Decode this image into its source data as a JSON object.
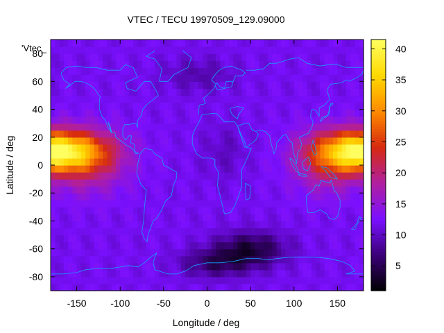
{
  "chart_data": {
    "type": "heatmap",
    "title": "VTEC / TECU 19970509_129.09000",
    "xlabel": "Longitude / deg",
    "ylabel": "Latitude / deg",
    "xlim": [
      -180,
      180
    ],
    "ylim": [
      -90,
      90
    ],
    "x_ticks": [
      -150,
      -100,
      -50,
      0,
      50,
      100,
      150
    ],
    "y_ticks": [
      60,
      40,
      20,
      0,
      -20,
      -40,
      -60,
      -80
    ],
    "top_clipped_tick": "80",
    "legend_text": "'Vtec_",
    "colorbar": {
      "min": 1,
      "max": 41.5,
      "ticks": [
        5,
        10,
        15,
        20,
        25,
        30,
        35,
        40
      ],
      "palette": [
        "#000000",
        "#3b0078",
        "#7a10ff",
        "#b01fa0",
        "#d62a10",
        "#ff8a00",
        "#ffd800",
        "#ffff60"
      ]
    },
    "grid": false,
    "field_description": "Background VTEC ~12 TECU; tropical maxima ~40 TECU centred near lon -180 and +180 at lat ~10; minima ~2-5 TECU over Antarctica (lon 0 to 80, lat -55 to -80).",
    "field_sources": [
      {
        "lon": -185,
        "lat": 10,
        "amp": 29,
        "rx": 58,
        "ry": 14
      },
      {
        "lon": 185,
        "lat": 10,
        "amp": 29,
        "rx": 52,
        "ry": 14
      },
      {
        "lon": -140,
        "lat": 3,
        "amp": 8,
        "rx": 45,
        "ry": 22
      },
      {
        "lon": 140,
        "lat": 3,
        "amp": 8,
        "rx": 40,
        "ry": 22
      },
      {
        "lon": 50,
        "lat": -60,
        "amp": -8,
        "rx": 40,
        "ry": 12
      },
      {
        "lon": 10,
        "lat": -70,
        "amp": -6,
        "rx": 40,
        "ry": 10
      },
      {
        "lon": -10,
        "lat": 65,
        "amp": -3,
        "rx": 40,
        "ry": 12
      },
      {
        "lon": 20,
        "lat": 10,
        "amp": -2,
        "rx": 25,
        "ry": 20
      }
    ],
    "background_value": 12,
    "coastline_color": "#14a0ff"
  }
}
